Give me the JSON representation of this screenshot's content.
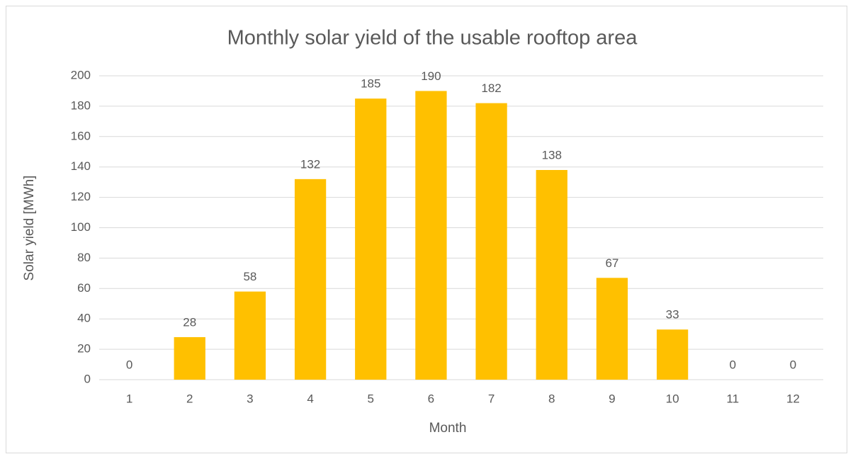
{
  "chart_data": {
    "type": "bar",
    "title": "Monthly solar yield of the usable rooftop area",
    "x_label": "Month",
    "y_label": "Solar yield [MWh]",
    "categories": [
      "1",
      "2",
      "3",
      "4",
      "5",
      "6",
      "7",
      "8",
      "9",
      "10",
      "11",
      "12"
    ],
    "values": [
      0,
      28,
      58,
      132,
      185,
      190,
      182,
      138,
      67,
      33,
      0,
      0
    ],
    "color": "#ffc000",
    "ylim": [
      0,
      200
    ],
    "yticks": [
      0,
      20,
      40,
      60,
      80,
      100,
      120,
      140,
      160,
      180,
      200
    ],
    "grid": true
  }
}
